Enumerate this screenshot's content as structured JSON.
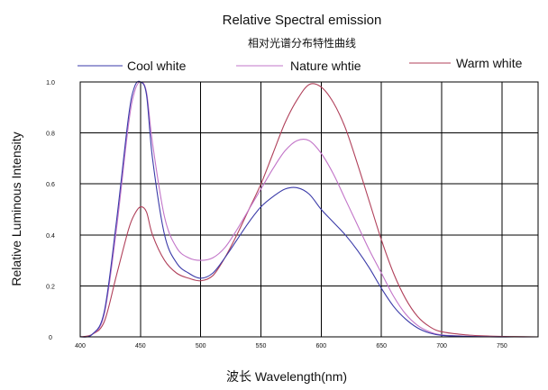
{
  "chart_data": {
    "type": "line",
    "title": "Relative Spectral emission",
    "subtitle": "相对光谱分布特性曲线",
    "xlabel": "波长   Wavelength(nm)",
    "ylabel": "Relative Luminous Intensity",
    "xlim": [
      400,
      780
    ],
    "ylim": [
      0,
      1.0
    ],
    "x_ticks": [
      400,
      450,
      500,
      550,
      600,
      650,
      700,
      750
    ],
    "x_tick_labels": [
      "400",
      "450",
      "500",
      "550",
      "600",
      "650",
      "700",
      "750"
    ],
    "y_ticks": [
      0,
      0.2,
      0.4,
      0.6,
      0.8,
      1.0
    ],
    "y_tick_labels": [
      "0",
      "0.2",
      "0.4",
      "0.6",
      "0.8",
      "1.0"
    ],
    "grid": true,
    "legend_position": "top",
    "x": [
      400,
      410,
      420,
      430,
      440,
      445,
      450,
      455,
      460,
      470,
      480,
      490,
      500,
      510,
      520,
      530,
      540,
      550,
      560,
      570,
      580,
      590,
      600,
      610,
      620,
      630,
      640,
      650,
      660,
      670,
      680,
      690,
      700,
      720,
      740,
      760,
      780
    ],
    "series": [
      {
        "name": "Cool white",
        "color": "#3a3aa8",
        "values": [
          0.0,
          0.01,
          0.1,
          0.45,
          0.86,
          0.98,
          1.0,
          0.95,
          0.7,
          0.4,
          0.29,
          0.25,
          0.23,
          0.25,
          0.31,
          0.38,
          0.45,
          0.51,
          0.55,
          0.58,
          0.585,
          0.56,
          0.5,
          0.45,
          0.4,
          0.34,
          0.27,
          0.19,
          0.12,
          0.07,
          0.035,
          0.015,
          0.006,
          0.002,
          0.0,
          0.0,
          0.0
        ]
      },
      {
        "name": "Nature whtie",
        "color": "#c274c8",
        "values": [
          0.0,
          0.01,
          0.09,
          0.42,
          0.83,
          0.96,
          1.0,
          0.96,
          0.76,
          0.47,
          0.35,
          0.31,
          0.3,
          0.31,
          0.35,
          0.42,
          0.5,
          0.58,
          0.66,
          0.73,
          0.77,
          0.77,
          0.72,
          0.64,
          0.54,
          0.44,
          0.34,
          0.25,
          0.16,
          0.09,
          0.045,
          0.02,
          0.008,
          0.003,
          0.001,
          0.0,
          0.0
        ]
      },
      {
        "name": "Warm white",
        "color": "#b0405a",
        "values": [
          0.0,
          0.01,
          0.06,
          0.24,
          0.42,
          0.48,
          0.51,
          0.49,
          0.4,
          0.3,
          0.25,
          0.23,
          0.22,
          0.24,
          0.31,
          0.4,
          0.5,
          0.6,
          0.72,
          0.84,
          0.93,
          0.99,
          0.98,
          0.92,
          0.82,
          0.68,
          0.53,
          0.38,
          0.25,
          0.15,
          0.08,
          0.04,
          0.02,
          0.008,
          0.003,
          0.001,
          0.0
        ]
      }
    ]
  }
}
